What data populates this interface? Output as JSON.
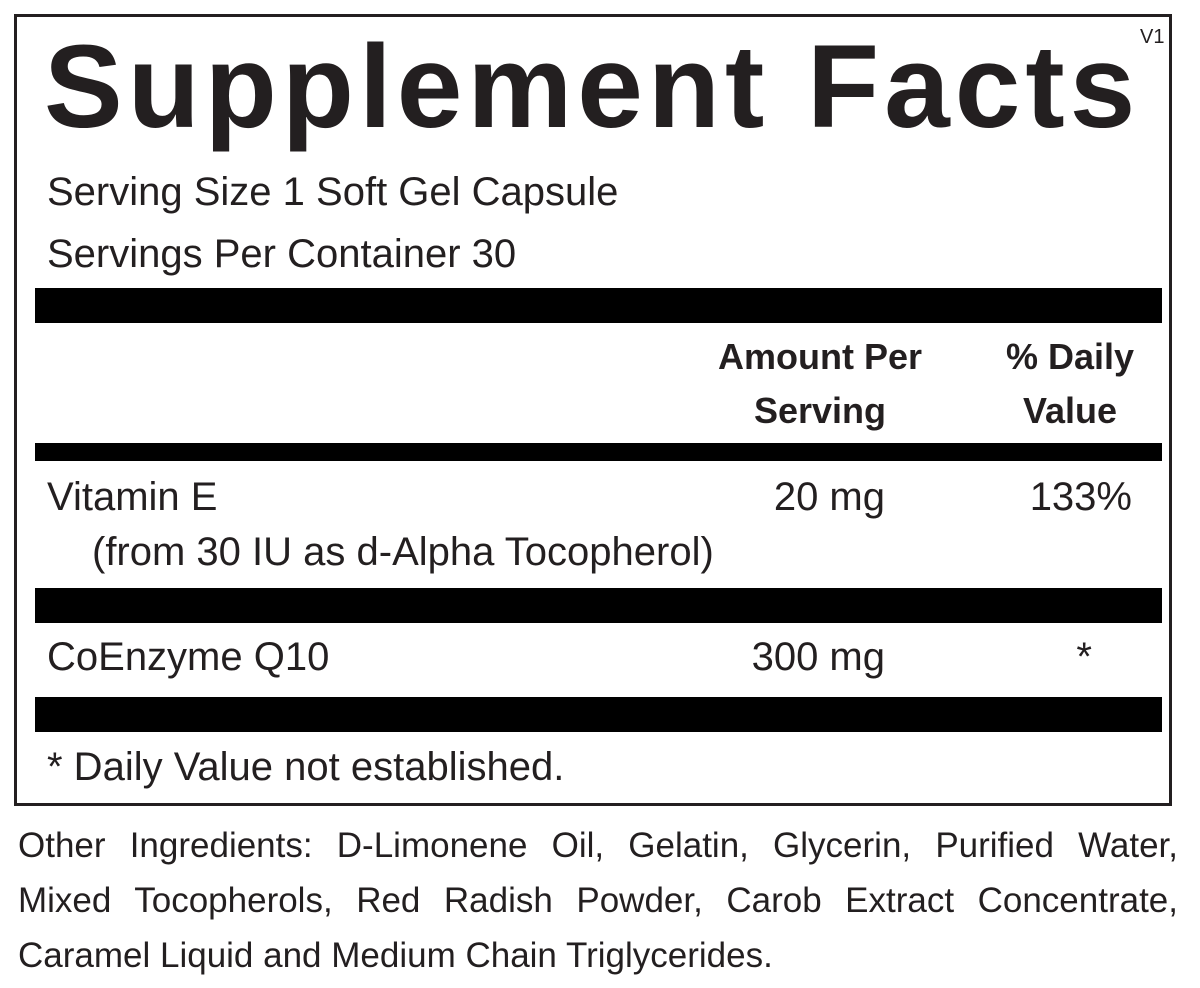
{
  "title": "Supplement Facts",
  "version": "V1",
  "serving_size": "Serving Size 1 Soft Gel Capsule",
  "servings_per_container": "Servings Per Container 30",
  "headers": {
    "amount_line1": "Amount Per",
    "amount_line2": "Serving",
    "dv_line1": "% Daily",
    "dv_line2": "Value"
  },
  "rows": [
    {
      "name": "Vitamin E",
      "detail": "(from 30 IU as d-Alpha Tocopherol)",
      "amount": "20 mg",
      "dv": "133%"
    },
    {
      "name": "CoEnzyme Q10",
      "amount": "300 mg",
      "dv": "*"
    }
  ],
  "footnote": "* Daily Value not established.",
  "other_ingredients": "Other Ingredients: D-Limonene Oil, Gelatin, Glycerin, Purified Water, Mixed Tocopherols, Red Radish Powder, Carob Extract Concentrate, Caramel Liquid and Medium Chain Triglycerides."
}
